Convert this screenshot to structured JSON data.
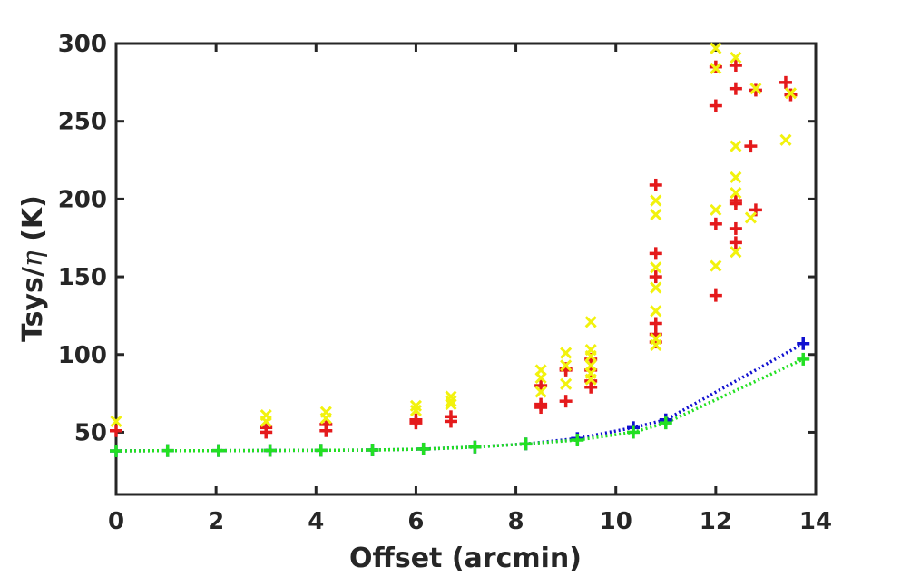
{
  "chart_data": {
    "type": "scatter",
    "title": "",
    "xlabel": "Offset (arcmin)",
    "ylabel_prefix": "Tsys/",
    "ylabel_symbol": "η",
    "ylabel_suffix": " (K)",
    "xlim": [
      0,
      14
    ],
    "ylim": [
      10,
      300
    ],
    "xticks": [
      0,
      2,
      4,
      6,
      8,
      10,
      12,
      14
    ],
    "yticks": [
      50,
      100,
      150,
      200,
      250,
      300
    ],
    "grid": false,
    "legend": "none",
    "series": [
      {
        "name": "red-plus",
        "marker": "plus",
        "color": "#e41a1c",
        "points": [
          [
            0.0,
            51
          ],
          [
            3.0,
            50
          ],
          [
            3.0,
            53
          ],
          [
            4.2,
            51
          ],
          [
            4.2,
            55
          ],
          [
            6.0,
            56
          ],
          [
            6.0,
            58
          ],
          [
            6.7,
            57
          ],
          [
            6.7,
            60
          ],
          [
            8.5,
            66
          ],
          [
            8.5,
            68
          ],
          [
            8.5,
            80
          ],
          [
            9.0,
            70
          ],
          [
            9.0,
            90
          ],
          [
            9.0,
            91
          ],
          [
            9.5,
            79
          ],
          [
            9.5,
            83
          ],
          [
            9.5,
            90
          ],
          [
            9.5,
            97
          ],
          [
            10.8,
            209
          ],
          [
            10.8,
            165
          ],
          [
            10.8,
            150
          ],
          [
            10.8,
            120
          ],
          [
            10.8,
            113
          ],
          [
            10.8,
            108
          ],
          [
            12.0,
            285
          ],
          [
            12.0,
            260
          ],
          [
            12.0,
            184
          ],
          [
            12.0,
            138
          ],
          [
            12.4,
            286
          ],
          [
            12.4,
            271
          ],
          [
            12.4,
            199
          ],
          [
            12.4,
            197
          ],
          [
            12.4,
            181
          ],
          [
            12.4,
            172
          ],
          [
            12.7,
            234
          ],
          [
            12.8,
            270
          ],
          [
            12.8,
            193
          ],
          [
            13.4,
            275
          ],
          [
            13.5,
            267
          ]
        ]
      },
      {
        "name": "yellow-cross",
        "marker": "x",
        "color": "#f2f20d",
        "points": [
          [
            0.0,
            57
          ],
          [
            3.0,
            61
          ],
          [
            3.0,
            57
          ],
          [
            4.2,
            63
          ],
          [
            4.2,
            59
          ],
          [
            6.0,
            67
          ],
          [
            6.0,
            64
          ],
          [
            6.7,
            73
          ],
          [
            6.7,
            70
          ],
          [
            6.7,
            68
          ],
          [
            8.5,
            90
          ],
          [
            8.5,
            85
          ],
          [
            8.5,
            76
          ],
          [
            9.0,
            101
          ],
          [
            9.0,
            93
          ],
          [
            9.0,
            81
          ],
          [
            9.5,
            121
          ],
          [
            9.5,
            103
          ],
          [
            9.5,
            99
          ],
          [
            9.5,
            93
          ],
          [
            9.5,
            88
          ],
          [
            9.5,
            84
          ],
          [
            10.8,
            199
          ],
          [
            10.8,
            190
          ],
          [
            10.8,
            156
          ],
          [
            10.8,
            143
          ],
          [
            10.8,
            128
          ],
          [
            10.8,
            110
          ],
          [
            10.8,
            106
          ],
          [
            12.0,
            297
          ],
          [
            12.0,
            284
          ],
          [
            12.0,
            193
          ],
          [
            12.0,
            157
          ],
          [
            12.4,
            291
          ],
          [
            12.4,
            234
          ],
          [
            12.4,
            214
          ],
          [
            12.4,
            204
          ],
          [
            12.4,
            166
          ],
          [
            12.7,
            188
          ],
          [
            12.8,
            271
          ],
          [
            13.4,
            238
          ],
          [
            13.5,
            268
          ]
        ]
      },
      {
        "name": "blue-model",
        "marker": "plus",
        "line": "dotted",
        "color": "#1010d0",
        "points": [
          [
            0.0,
            38
          ],
          [
            1.03,
            38.2
          ],
          [
            2.05,
            38.2
          ],
          [
            3.08,
            38.3
          ],
          [
            4.1,
            38.4
          ],
          [
            5.13,
            38.6
          ],
          [
            6.15,
            39.2
          ],
          [
            7.18,
            40.5
          ],
          [
            8.2,
            42.5
          ],
          [
            9.23,
            46
          ],
          [
            10.35,
            53
          ],
          [
            11.0,
            58
          ],
          [
            13.75,
            107
          ]
        ]
      },
      {
        "name": "green-model",
        "marker": "plus",
        "line": "dotted",
        "color": "#22e022",
        "points": [
          [
            0.0,
            38
          ],
          [
            1.03,
            38.2
          ],
          [
            2.05,
            38.2
          ],
          [
            3.08,
            38.3
          ],
          [
            4.1,
            38.4
          ],
          [
            5.13,
            38.6
          ],
          [
            6.15,
            39.2
          ],
          [
            7.18,
            40.5
          ],
          [
            8.2,
            42.5
          ],
          [
            9.23,
            45
          ],
          [
            10.35,
            50
          ],
          [
            11.0,
            56
          ],
          [
            13.75,
            97
          ]
        ]
      }
    ]
  }
}
